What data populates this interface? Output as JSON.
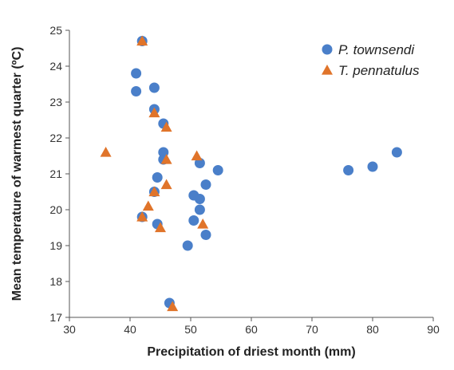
{
  "chart_data": {
    "type": "scatter",
    "x_label": "Precipitation of driest month (mm)",
    "y_label": "Mean temperature of warmest quarter (ºC)",
    "xlim": [
      30,
      90
    ],
    "xticks": [
      30,
      40,
      50,
      60,
      70,
      80,
      90
    ],
    "ylim": [
      17,
      25
    ],
    "yticks": [
      17,
      18,
      19,
      20,
      21,
      22,
      23,
      24,
      25
    ],
    "legend": "upper right",
    "series": [
      {
        "name": "P. townsendi",
        "color": "#4a7fc9",
        "marker": "circle",
        "x": [
          42,
          41,
          41,
          44,
          44,
          45.5,
          45.5,
          45.5,
          44.5,
          44,
          42,
          44.5,
          50.5,
          51.5,
          54.5,
          52.5,
          51.5,
          51.5,
          50.5,
          52.5,
          49.5,
          46.5,
          76,
          80,
          84
        ],
        "y": [
          24.7,
          23.8,
          23.3,
          23.4,
          22.8,
          22.4,
          21.6,
          21.4,
          20.9,
          20.5,
          19.8,
          19.6,
          20.4,
          21.3,
          21.1,
          20.7,
          20.3,
          20.0,
          19.7,
          19.3,
          19.0,
          17.4,
          21.1,
          21.2,
          21.6
        ]
      },
      {
        "name": "T. pennatulus",
        "color": "#e0742a",
        "marker": "triangle",
        "x": [
          36,
          42,
          44,
          46,
          46,
          51,
          46,
          44,
          43,
          42,
          45,
          52,
          47
        ],
        "y": [
          21.6,
          24.7,
          22.7,
          22.3,
          21.4,
          21.5,
          20.7,
          20.5,
          20.1,
          19.8,
          19.5,
          19.6,
          17.3
        ]
      }
    ]
  }
}
